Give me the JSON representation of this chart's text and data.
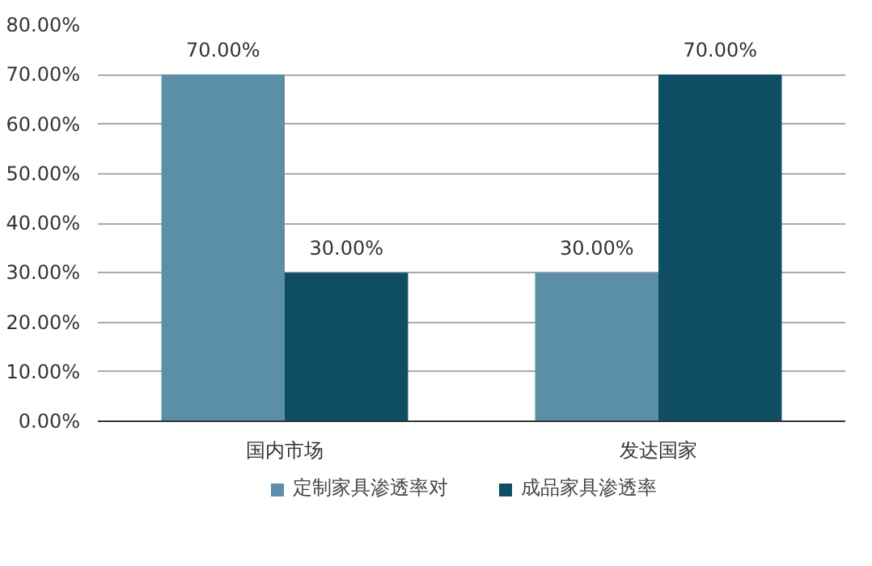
{
  "chart_data": {
    "type": "bar",
    "categories": [
      "国内市场",
      "发达国家"
    ],
    "series": [
      {
        "name": "定制家具渗透率对",
        "color": "#5b8fa8",
        "values": [
          70,
          30
        ],
        "value_labels": [
          "70.00%",
          "30.00%"
        ]
      },
      {
        "name": "成品家具渗透率",
        "color": "#0e4d64",
        "values": [
          30,
          70
        ],
        "value_labels": [
          "30.00%",
          "70.00%"
        ]
      }
    ],
    "ylim": [
      0,
      80
    ],
    "yticks": [
      {
        "value": 0,
        "label": "0.00%"
      },
      {
        "value": 10,
        "label": "10.00%"
      },
      {
        "value": 20,
        "label": "20.00%"
      },
      {
        "value": 30,
        "label": "30.00%"
      },
      {
        "value": 40,
        "label": "40.00%"
      },
      {
        "value": 50,
        "label": "50.00%"
      },
      {
        "value": 60,
        "label": "60.00%"
      },
      {
        "value": 70,
        "label": "70.00%"
      },
      {
        "value": 80,
        "label": "80.00%"
      }
    ],
    "grid": "y",
    "legend": "bottom"
  }
}
